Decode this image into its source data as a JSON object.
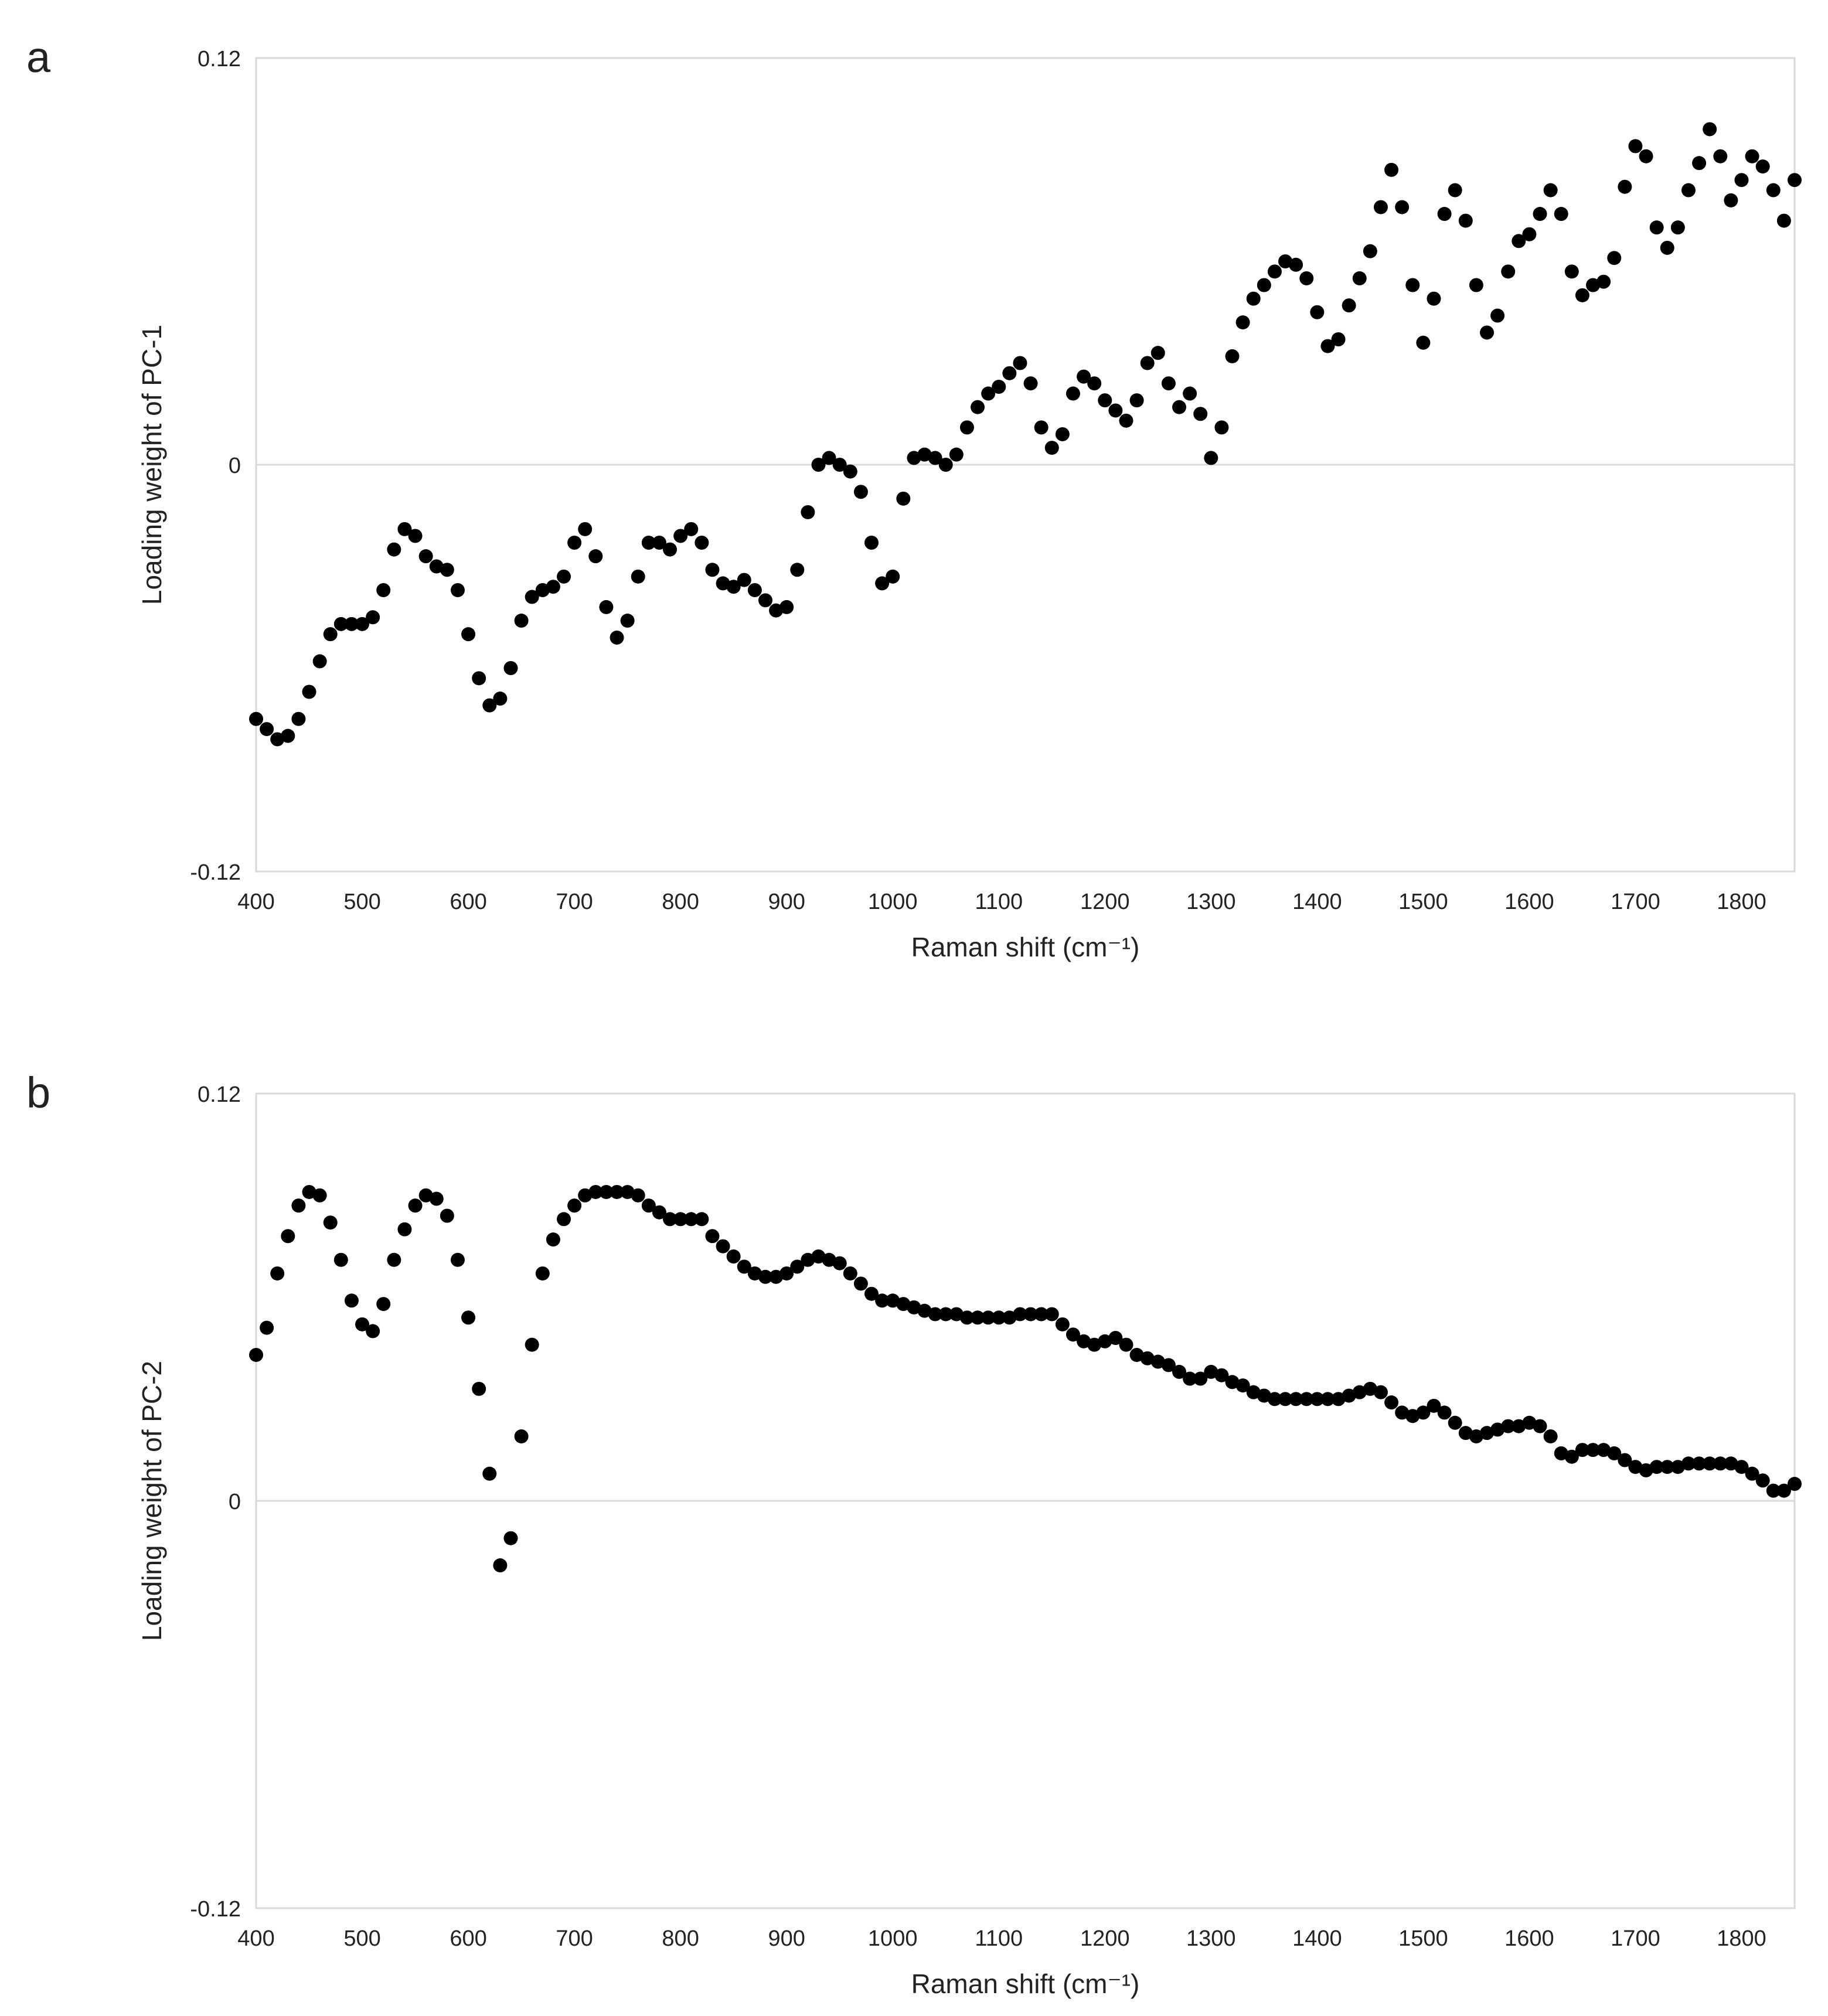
{
  "chart_data": [
    {
      "type": "scatter",
      "panel_label": "a",
      "x_label": "Raman shift (cm⁻¹)",
      "y_label": "Loading weight of PC-1",
      "color": "#000000",
      "grid": true,
      "xlim": [
        400,
        1850
      ],
      "xticks": [
        400,
        500,
        600,
        700,
        800,
        900,
        1000,
        1100,
        1200,
        1300,
        1400,
        1500,
        1600,
        1700,
        1800
      ],
      "ylim": [
        -0.12,
        0.12
      ],
      "yticks": [
        -0.12,
        0,
        0.12
      ],
      "x": [
        400,
        410,
        420,
        430,
        440,
        450,
        460,
        470,
        480,
        490,
        500,
        510,
        520,
        530,
        540,
        550,
        560,
        570,
        580,
        590,
        600,
        610,
        620,
        630,
        640,
        650,
        660,
        670,
        680,
        690,
        700,
        710,
        720,
        730,
        740,
        750,
        760,
        770,
        780,
        790,
        800,
        810,
        820,
        830,
        840,
        850,
        860,
        870,
        880,
        890,
        900,
        910,
        920,
        930,
        940,
        950,
        960,
        970,
        980,
        990,
        1000,
        1010,
        1020,
        1030,
        1040,
        1050,
        1060,
        1070,
        1080,
        1090,
        1100,
        1110,
        1120,
        1130,
        1140,
        1150,
        1160,
        1170,
        1180,
        1190,
        1200,
        1210,
        1220,
        1230,
        1240,
        1250,
        1260,
        1270,
        1280,
        1290,
        1300,
        1310,
        1320,
        1330,
        1340,
        1350,
        1360,
        1370,
        1380,
        1390,
        1400,
        1410,
        1420,
        1430,
        1440,
        1450,
        1460,
        1470,
        1480,
        1490,
        1500,
        1510,
        1520,
        1530,
        1540,
        1550,
        1560,
        1570,
        1580,
        1590,
        1600,
        1610,
        1620,
        1630,
        1640,
        1650,
        1660,
        1670,
        1680,
        1690,
        1700,
        1710,
        1720,
        1730,
        1740,
        1750,
        1760,
        1770,
        1780,
        1790,
        1800,
        1810,
        1820,
        1830,
        1840,
        1850
      ],
      "values": [
        -0.075,
        -0.078,
        -0.081,
        -0.08,
        -0.075,
        -0.067,
        -0.058,
        -0.05,
        -0.047,
        -0.047,
        -0.047,
        -0.045,
        -0.037,
        -0.025,
        -0.019,
        -0.021,
        -0.027,
        -0.03,
        -0.031,
        -0.037,
        -0.05,
        -0.063,
        -0.071,
        -0.069,
        -0.06,
        -0.046,
        -0.039,
        -0.037,
        -0.036,
        -0.033,
        -0.023,
        -0.019,
        -0.027,
        -0.042,
        -0.051,
        -0.046,
        -0.033,
        -0.023,
        -0.023,
        -0.025,
        -0.021,
        -0.019,
        -0.023,
        -0.031,
        -0.035,
        -0.036,
        -0.034,
        -0.037,
        -0.04,
        -0.043,
        -0.042,
        -0.031,
        -0.014,
        0.0,
        0.002,
        0.0,
        -0.002,
        -0.008,
        -0.023,
        -0.035,
        -0.033,
        -0.01,
        0.002,
        0.003,
        0.002,
        0.0,
        0.003,
        0.011,
        0.017,
        0.021,
        0.023,
        0.027,
        0.03,
        0.024,
        0.011,
        0.005,
        0.009,
        0.021,
        0.026,
        0.024,
        0.019,
        0.016,
        0.013,
        0.019,
        0.03,
        0.033,
        0.024,
        0.017,
        0.021,
        0.015,
        0.002,
        0.011,
        0.032,
        0.042,
        0.049,
        0.053,
        0.057,
        0.06,
        0.059,
        0.055,
        0.045,
        0.035,
        0.037,
        0.047,
        0.055,
        0.063,
        0.076,
        0.087,
        0.076,
        0.053,
        0.036,
        0.049,
        0.074,
        0.081,
        0.072,
        0.053,
        0.039,
        0.044,
        0.057,
        0.066,
        0.068,
        0.074,
        0.081,
        0.074,
        0.057,
        0.05,
        0.053,
        0.054,
        0.061,
        0.082,
        0.094,
        0.091,
        0.07,
        0.064,
        0.07,
        0.081,
        0.089,
        0.099,
        0.091,
        0.078,
        0.084,
        0.091,
        0.088,
        0.081,
        0.072,
        0.084
      ]
    },
    {
      "type": "scatter",
      "panel_label": "b",
      "x_label": "Raman shift (cm⁻¹)",
      "y_label": "Loading weight of PC-2",
      "color": "#000000",
      "grid": true,
      "xlim": [
        400,
        1850
      ],
      "xticks": [
        400,
        500,
        600,
        700,
        800,
        900,
        1000,
        1100,
        1200,
        1300,
        1400,
        1500,
        1600,
        1700,
        1800
      ],
      "ylim": [
        -0.12,
        0.12
      ],
      "yticks": [
        -0.12,
        0,
        0.12
      ],
      "x": [
        400,
        410,
        420,
        430,
        440,
        450,
        460,
        470,
        480,
        490,
        500,
        510,
        520,
        530,
        540,
        550,
        560,
        570,
        580,
        590,
        600,
        610,
        620,
        630,
        640,
        650,
        660,
        670,
        680,
        690,
        700,
        710,
        720,
        730,
        740,
        750,
        760,
        770,
        780,
        790,
        800,
        810,
        820,
        830,
        840,
        850,
        860,
        870,
        880,
        890,
        900,
        910,
        920,
        930,
        940,
        950,
        960,
        970,
        980,
        990,
        1000,
        1010,
        1020,
        1030,
        1040,
        1050,
        1060,
        1070,
        1080,
        1090,
        1100,
        1110,
        1120,
        1130,
        1140,
        1150,
        1160,
        1170,
        1180,
        1190,
        1200,
        1210,
        1220,
        1230,
        1240,
        1250,
        1260,
        1270,
        1280,
        1290,
        1300,
        1310,
        1320,
        1330,
        1340,
        1350,
        1360,
        1370,
        1380,
        1390,
        1400,
        1410,
        1420,
        1430,
        1440,
        1450,
        1460,
        1470,
        1480,
        1490,
        1500,
        1510,
        1520,
        1530,
        1540,
        1550,
        1560,
        1570,
        1580,
        1590,
        1600,
        1610,
        1620,
        1630,
        1640,
        1650,
        1660,
        1670,
        1680,
        1690,
        1700,
        1710,
        1720,
        1730,
        1740,
        1750,
        1760,
        1770,
        1780,
        1790,
        1800,
        1810,
        1820,
        1830,
        1840,
        1850
      ],
      "values": [
        0.043,
        0.051,
        0.067,
        0.078,
        0.087,
        0.091,
        0.09,
        0.082,
        0.071,
        0.059,
        0.052,
        0.05,
        0.058,
        0.071,
        0.08,
        0.087,
        0.09,
        0.089,
        0.084,
        0.071,
        0.054,
        0.033,
        0.008,
        -0.019,
        -0.011,
        0.019,
        0.046,
        0.067,
        0.077,
        0.083,
        0.087,
        0.09,
        0.091,
        0.091,
        0.091,
        0.091,
        0.09,
        0.087,
        0.085,
        0.083,
        0.083,
        0.083,
        0.083,
        0.078,
        0.075,
        0.072,
        0.069,
        0.067,
        0.066,
        0.066,
        0.067,
        0.069,
        0.071,
        0.072,
        0.071,
        0.07,
        0.067,
        0.064,
        0.061,
        0.059,
        0.059,
        0.058,
        0.057,
        0.056,
        0.055,
        0.055,
        0.055,
        0.054,
        0.054,
        0.054,
        0.054,
        0.054,
        0.055,
        0.055,
        0.055,
        0.055,
        0.052,
        0.049,
        0.047,
        0.046,
        0.047,
        0.048,
        0.046,
        0.043,
        0.042,
        0.041,
        0.04,
        0.038,
        0.036,
        0.036,
        0.038,
        0.037,
        0.035,
        0.034,
        0.032,
        0.031,
        0.03,
        0.03,
        0.03,
        0.03,
        0.03,
        0.03,
        0.03,
        0.031,
        0.032,
        0.033,
        0.032,
        0.029,
        0.026,
        0.025,
        0.026,
        0.028,
        0.026,
        0.023,
        0.02,
        0.019,
        0.02,
        0.021,
        0.022,
        0.022,
        0.023,
        0.022,
        0.019,
        0.014,
        0.013,
        0.015,
        0.015,
        0.015,
        0.014,
        0.012,
        0.01,
        0.009,
        0.01,
        0.01,
        0.01,
        0.011,
        0.011,
        0.011,
        0.011,
        0.011,
        0.01,
        0.008,
        0.006,
        0.003,
        0.003,
        0.005
      ]
    }
  ]
}
